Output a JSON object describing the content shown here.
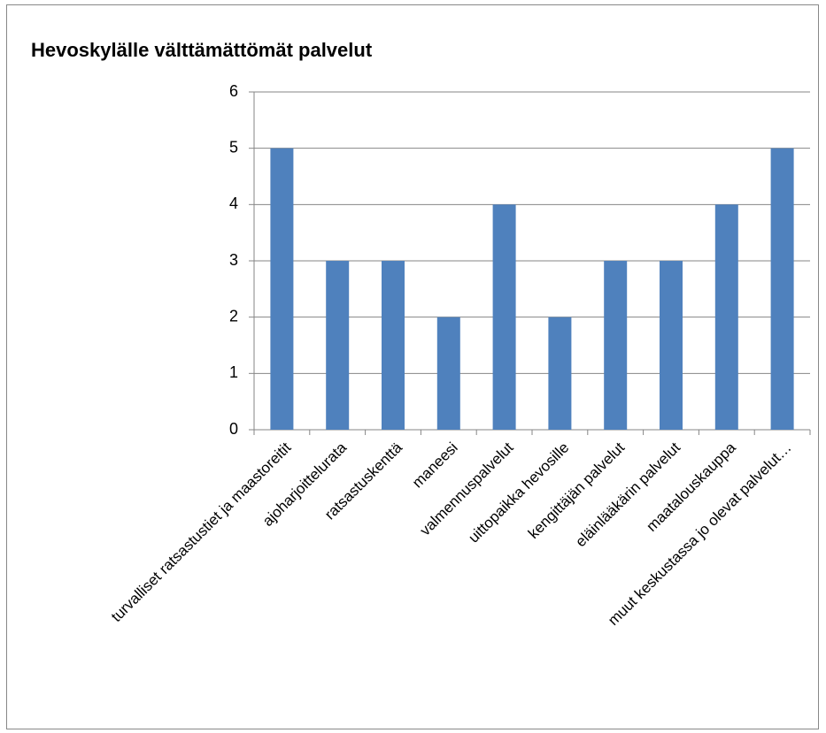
{
  "chart_data": {
    "type": "bar",
    "title": "Hevoskylälle välttämättömät palvelut",
    "categories": [
      "turvalliset ratsastustiet ja maastoreitit",
      "ajoharjoittelurata",
      "ratsastuskenttä",
      "maneesi",
      "valmennuspalvelut",
      "uittopaikka hevosille",
      "kengittäjän palvelut",
      "eläinlääkärin palvelut",
      "maatalouskauppa",
      "muut keskustassa jo olevat palvelut…"
    ],
    "values": [
      5,
      3,
      3,
      2,
      4,
      2,
      3,
      3,
      4,
      5
    ],
    "color": "#4f81bd",
    "ylim": [
      0,
      6
    ],
    "yticks": [
      0,
      1,
      2,
      3,
      4,
      5,
      6
    ],
    "grid": true
  }
}
